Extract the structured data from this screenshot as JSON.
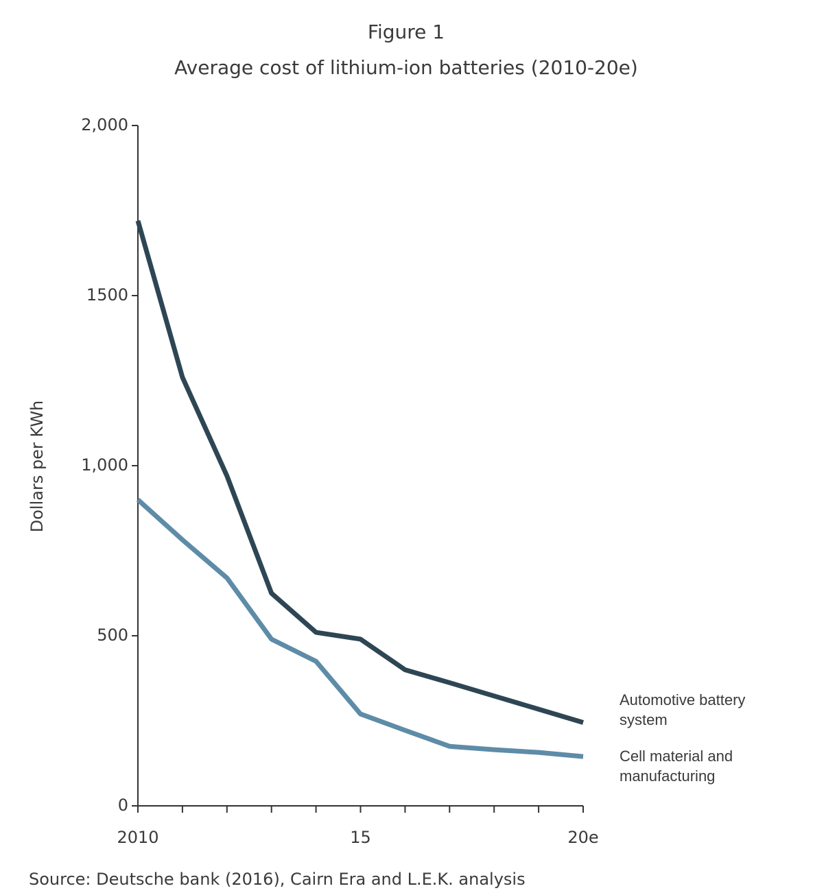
{
  "chart_data": {
    "type": "line",
    "title": "Figure 1",
    "subtitle": "Average cost of lithium-ion batteries (2010-20e)",
    "y_label": "Dollars per KWh",
    "source": "Source: Deutsche bank (2016), Cairn Era and L.E.K. analysis",
    "x": [
      2010,
      2011,
      2012,
      2013,
      2014,
      2015,
      2016,
      2017,
      2018,
      2019,
      2020
    ],
    "xlim": [
      2010,
      2020
    ],
    "xticks": [
      2010,
      {
        "value": 2015,
        "label": "15"
      },
      {
        "value": 2020,
        "label": "20e"
      }
    ],
    "ylim": [
      0,
      2000
    ],
    "yticks": [
      0,
      500,
      {
        "value": 1000,
        "label": "1,000"
      },
      1500,
      {
        "value": 2000,
        "label": "2,000"
      }
    ],
    "grid": false,
    "series": [
      {
        "name": "Automotive battery system",
        "color": "#2e4654",
        "values": [
          1720,
          1260,
          970,
          625,
          510,
          490,
          400,
          362,
          323,
          284,
          245
        ]
      },
      {
        "name": "Cell material and manufacturing",
        "color": "#5e8ca8",
        "values": [
          900,
          782,
          670,
          490,
          425,
          270,
          222,
          175,
          165,
          157,
          145
        ]
      }
    ]
  }
}
